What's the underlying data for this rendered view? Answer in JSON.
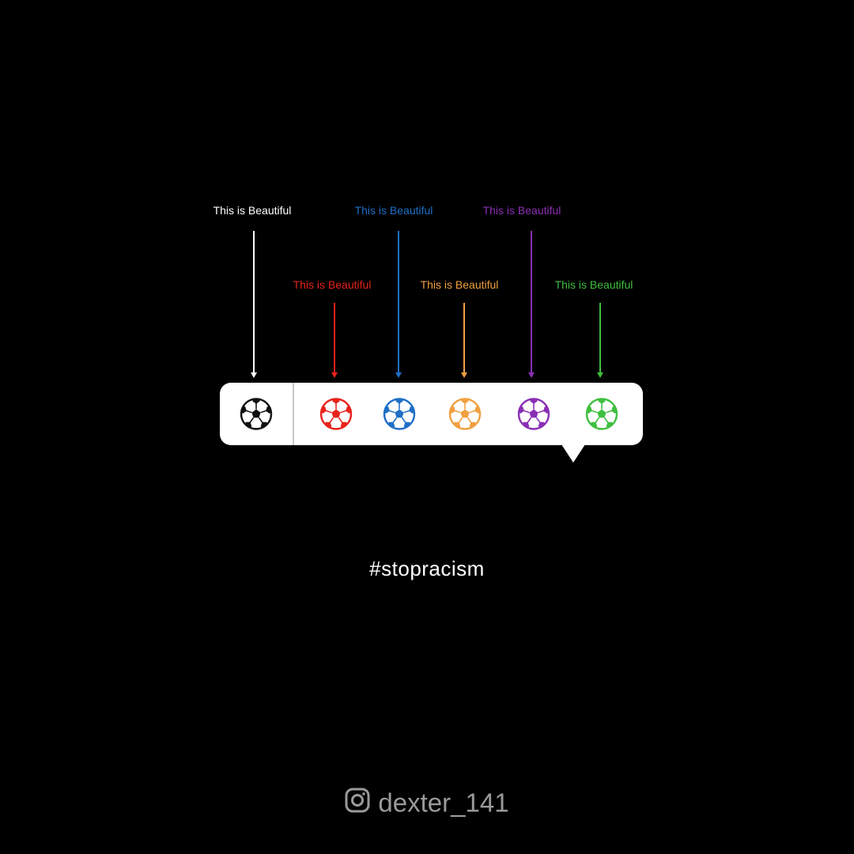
{
  "labels": [
    {
      "text": "This is Beautiful",
      "color": "#ffffff"
    },
    {
      "text": "This is Beautiful",
      "color": "#e8221c"
    },
    {
      "text": "This is Beautiful",
      "color": "#1f6fc6"
    },
    {
      "text": "This is Beautiful",
      "color": "#f0a040"
    },
    {
      "text": "This is Beautiful",
      "color": "#8a2fb5"
    },
    {
      "text": "This is Beautiful",
      "color": "#3fbf3f"
    }
  ],
  "balls": [
    {
      "name": "black-soccer-ball-icon",
      "color": "#111111"
    },
    {
      "name": "red-soccer-ball-icon",
      "color": "#e8221c"
    },
    {
      "name": "blue-soccer-ball-icon",
      "color": "#1f6fc6"
    },
    {
      "name": "orange-soccer-ball-icon",
      "color": "#f0a040"
    },
    {
      "name": "purple-soccer-ball-icon",
      "color": "#8a2fb5"
    },
    {
      "name": "green-soccer-ball-icon",
      "color": "#3fbf3f"
    }
  ],
  "hashtag": "#stopracism",
  "credit": {
    "icon": "instagram-icon",
    "handle": "dexter_141"
  }
}
